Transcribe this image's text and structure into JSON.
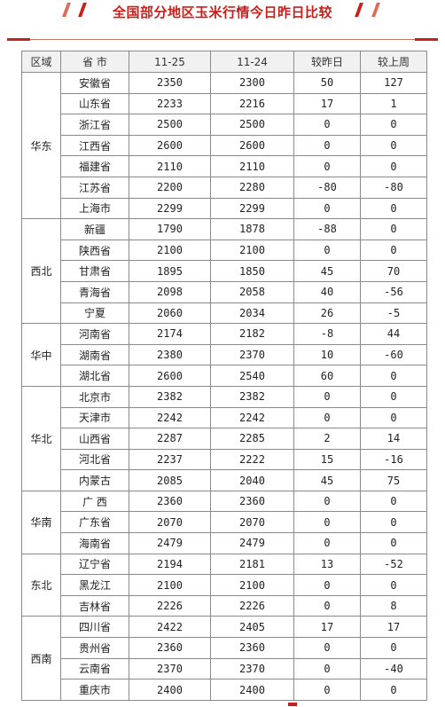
{
  "title": "全国部分地区玉米行情今日昨日比较",
  "columns": [
    "区域",
    "省 市",
    "11-25",
    "11-24",
    "较昨日",
    "较上周"
  ],
  "colors": {
    "accent": "#c8201b",
    "up": "#d9281e",
    "down": "#2a8a2a"
  },
  "regions": [
    {
      "name": "华东",
      "rows": [
        {
          "province": "安徽省",
          "today": "2350",
          "yesterday": "2300",
          "vs_yesterday": "50",
          "vs_last_week": "127"
        },
        {
          "province": "山东省",
          "today": "2233",
          "yesterday": "2216",
          "vs_yesterday": "17",
          "vs_last_week": "1"
        },
        {
          "province": "浙江省",
          "today": "2500",
          "yesterday": "2500",
          "vs_yesterday": "0",
          "vs_last_week": "0"
        },
        {
          "province": "江西省",
          "today": "2600",
          "yesterday": "2600",
          "vs_yesterday": "0",
          "vs_last_week": "0"
        },
        {
          "province": "福建省",
          "today": "2110",
          "yesterday": "2110",
          "vs_yesterday": "0",
          "vs_last_week": "0"
        },
        {
          "province": "江苏省",
          "today": "2200",
          "yesterday": "2280",
          "vs_yesterday": "-80",
          "vs_last_week": "-80"
        },
        {
          "province": "上海市",
          "today": "2299",
          "yesterday": "2299",
          "vs_yesterday": "0",
          "vs_last_week": "0"
        }
      ]
    },
    {
      "name": "西北",
      "rows": [
        {
          "province": "新疆",
          "today": "1790",
          "yesterday": "1878",
          "vs_yesterday": "-88",
          "vs_last_week": "0"
        },
        {
          "province": "陕西省",
          "today": "2100",
          "yesterday": "2100",
          "vs_yesterday": "0",
          "vs_last_week": "0"
        },
        {
          "province": "甘肃省",
          "today": "1895",
          "yesterday": "1850",
          "vs_yesterday": "45",
          "vs_last_week": "70"
        },
        {
          "province": "青海省",
          "today": "2098",
          "yesterday": "2058",
          "vs_yesterday": "40",
          "vs_last_week": "-56"
        },
        {
          "province": "宁夏",
          "today": "2060",
          "yesterday": "2034",
          "vs_yesterday": "26",
          "vs_last_week": "-5"
        }
      ]
    },
    {
      "name": "华中",
      "rows": [
        {
          "province": "河南省",
          "today": "2174",
          "yesterday": "2182",
          "vs_yesterday": "-8",
          "vs_last_week": "44"
        },
        {
          "province": "湖南省",
          "today": "2380",
          "yesterday": "2370",
          "vs_yesterday": "10",
          "vs_last_week": "-60"
        },
        {
          "province": "湖北省",
          "today": "2600",
          "yesterday": "2540",
          "vs_yesterday": "60",
          "vs_last_week": "0"
        }
      ]
    },
    {
      "name": "华北",
      "rows": [
        {
          "province": "北京市",
          "today": "2382",
          "yesterday": "2382",
          "vs_yesterday": "0",
          "vs_last_week": "0"
        },
        {
          "province": "天津市",
          "today": "2242",
          "yesterday": "2242",
          "vs_yesterday": "0",
          "vs_last_week": "0"
        },
        {
          "province": "山西省",
          "today": "2287",
          "yesterday": "2285",
          "vs_yesterday": "2",
          "vs_last_week": "14"
        },
        {
          "province": "河北省",
          "today": "2237",
          "yesterday": "2222",
          "vs_yesterday": "15",
          "vs_last_week": "-16"
        },
        {
          "province": "内蒙古",
          "today": "2085",
          "yesterday": "2040",
          "vs_yesterday": "45",
          "vs_last_week": "75"
        }
      ]
    },
    {
      "name": "华南",
      "rows": [
        {
          "province": "广 西",
          "today": "2360",
          "yesterday": "2360",
          "vs_yesterday": "0",
          "vs_last_week": "0"
        },
        {
          "province": "广东省",
          "today": "2070",
          "yesterday": "2070",
          "vs_yesterday": "0",
          "vs_last_week": "0"
        },
        {
          "province": "海南省",
          "today": "2479",
          "yesterday": "2479",
          "vs_yesterday": "0",
          "vs_last_week": "0"
        }
      ]
    },
    {
      "name": "东北",
      "rows": [
        {
          "province": "辽宁省",
          "today": "2194",
          "yesterday": "2181",
          "vs_yesterday": "13",
          "vs_last_week": "-52"
        },
        {
          "province": "黑龙江",
          "today": "2100",
          "yesterday": "2100",
          "vs_yesterday": "0",
          "vs_last_week": "0"
        },
        {
          "province": "吉林省",
          "today": "2226",
          "yesterday": "2226",
          "vs_yesterday": "0",
          "vs_last_week": "8"
        }
      ]
    },
    {
      "name": "西南",
      "rows": [
        {
          "province": "四川省",
          "today": "2422",
          "yesterday": "2405",
          "vs_yesterday": "17",
          "vs_last_week": "17"
        },
        {
          "province": "贵州省",
          "today": "2360",
          "yesterday": "2360",
          "vs_yesterday": "0",
          "vs_last_week": "0"
        },
        {
          "province": "云南省",
          "today": "2370",
          "yesterday": "2370",
          "vs_yesterday": "0",
          "vs_last_week": "-40"
        },
        {
          "province": "重庆市",
          "today": "2400",
          "yesterday": "2400",
          "vs_yesterday": "0",
          "vs_last_week": "0"
        }
      ]
    }
  ]
}
